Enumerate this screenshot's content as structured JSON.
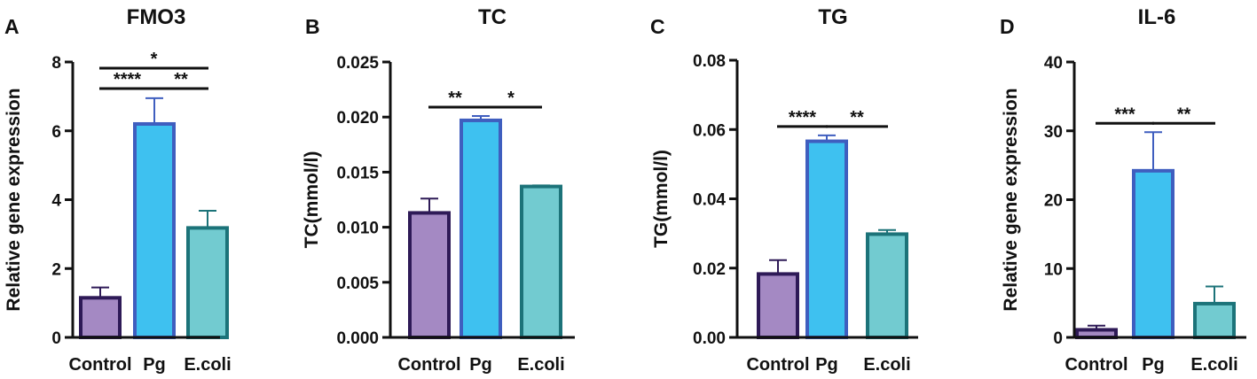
{
  "chart_data": [
    {
      "type": "bar",
      "panel": "A",
      "title": "FMO3",
      "ylabel": "Relative gene expression",
      "xlabel": "",
      "categories": [
        "Control",
        "Pg",
        "E.coli"
      ],
      "values": [
        1.15,
        6.2,
        3.18
      ],
      "errors": [
        0.3,
        0.75,
        0.5
      ],
      "ylim": [
        0,
        8
      ],
      "yticks": [
        "0",
        "2",
        "4",
        "6",
        "8"
      ],
      "significance": [
        {
          "from": 0,
          "to": 1,
          "label": "****",
          "level": 1
        },
        {
          "from": 1,
          "to": 2,
          "label": "**",
          "level": 1
        },
        {
          "from": 0,
          "to": 2,
          "label": "*",
          "level": 2
        }
      ]
    },
    {
      "type": "bar",
      "panel": "B",
      "title": "TC",
      "ylabel": "TC(mmol/l)",
      "xlabel": "",
      "categories": [
        "Control",
        "Pg",
        "E.coli"
      ],
      "values": [
        0.0113,
        0.0197,
        0.0137
      ],
      "errors": [
        0.0013,
        0.0004,
        0.0001
      ],
      "ylim": [
        0,
        0.025
      ],
      "yticks": [
        "0.000",
        "0.005",
        "0.010",
        "0.015",
        "0.020",
        "0.025"
      ],
      "significance": [
        {
          "from": 0,
          "to": 1,
          "label": "**",
          "level": 1
        },
        {
          "from": 1,
          "to": 2,
          "label": "*",
          "level": 1
        }
      ]
    },
    {
      "type": "bar",
      "panel": "C",
      "title": "TG",
      "ylabel": "TG(mmol/l)",
      "xlabel": "",
      "categories": [
        "Control",
        "Pg",
        "E.coli"
      ],
      "values": [
        0.0183,
        0.0566,
        0.0298
      ],
      "errors": [
        0.004,
        0.0017,
        0.0012
      ],
      "ylim": [
        0,
        0.08
      ],
      "yticks": [
        "0.00",
        "0.02",
        "0.04",
        "0.06",
        "0.08"
      ],
      "significance": [
        {
          "from": 0,
          "to": 1,
          "label": "****",
          "level": 1
        },
        {
          "from": 1,
          "to": 2,
          "label": "**",
          "level": 1
        }
      ]
    },
    {
      "type": "bar",
      "panel": "D",
      "title": "IL-6",
      "ylabel": "Relative gene expression",
      "xlabel": "",
      "categories": [
        "Control",
        "Pg",
        "E.coli"
      ],
      "values": [
        1.1,
        24.2,
        4.9
      ],
      "errors": [
        0.6,
        5.6,
        2.5
      ],
      "ylim": [
        0,
        40
      ],
      "yticks": [
        "0",
        "10",
        "20",
        "30",
        "40"
      ],
      "significance": [
        {
          "from": 0,
          "to": 1,
          "label": "***",
          "level": 1
        },
        {
          "from": 1,
          "to": 2,
          "label": "**",
          "level": 1
        }
      ]
    }
  ],
  "colors": {
    "fills": [
      "#a489c3",
      "#3ec1f0",
      "#72cbd0"
    ],
    "edges": [
      "#2e1a57",
      "#3f5ebf",
      "#1c7379"
    ],
    "axis": "#111111"
  }
}
